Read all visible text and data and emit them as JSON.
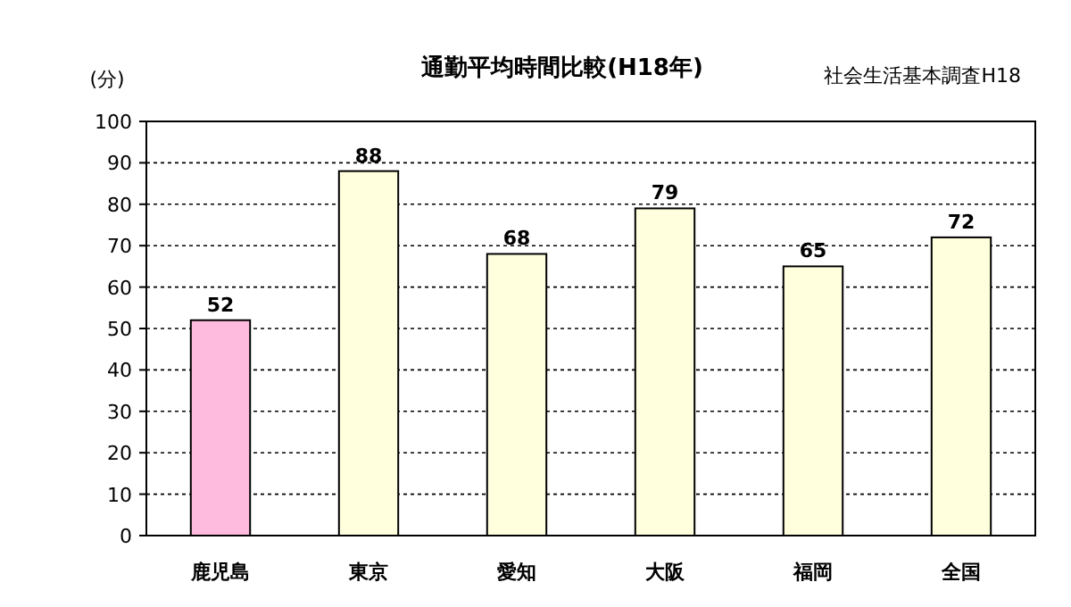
{
  "chart_data": {
    "type": "bar",
    "title": "通勤平均時間比較(H18年)",
    "ylabel": "(分)",
    "annotations": [
      "社会生活基本調査H18"
    ],
    "categories": [
      "鹿児島",
      "東京",
      "愛知",
      "大阪",
      "福岡",
      "全国"
    ],
    "values": [
      52,
      88,
      68,
      79,
      65,
      72
    ],
    "colors": [
      "#ffbbdd",
      "#ffffdd",
      "#ffffdd",
      "#ffffdd",
      "#ffffdd",
      "#ffffdd"
    ],
    "ylim": [
      0,
      100
    ],
    "yticks": [
      0,
      10,
      20,
      30,
      40,
      50,
      60,
      70,
      80,
      90,
      100
    ],
    "grid": "y",
    "data_labels": true
  }
}
